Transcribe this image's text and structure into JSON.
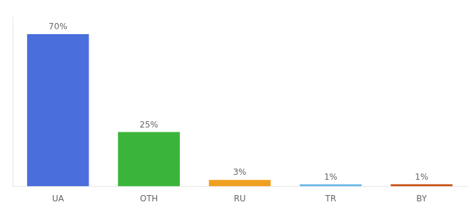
{
  "chart_data": {
    "type": "bar",
    "categories": [
      "UA",
      "OTH",
      "RU",
      "TR",
      "BY"
    ],
    "values": [
      70,
      25,
      3,
      1,
      1
    ],
    "value_labels": [
      "70%",
      "25%",
      "3%",
      "1%",
      "1%"
    ],
    "colors": [
      "#4a6fdc",
      "#3ab53a",
      "#f0a020",
      "#6ab8e8",
      "#c85010"
    ],
    "ylim": [
      0,
      78
    ],
    "data_labels": true,
    "tick_labels": "x",
    "grid": false
  }
}
